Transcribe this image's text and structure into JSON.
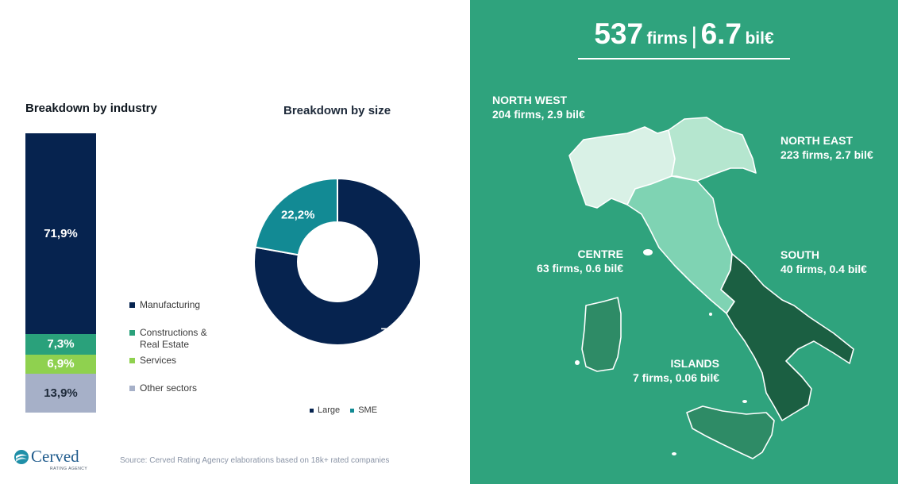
{
  "industry": {
    "title": "Breakdown by industry",
    "legend": [
      {
        "label": "Manufacturing",
        "color": "#06234f"
      },
      {
        "label": "Constructions & Real Estate",
        "color": "#2aa17b"
      },
      {
        "label": "Services",
        "color": "#8fd14f"
      },
      {
        "label": "Other sectors",
        "color": "#a6b0c8"
      }
    ]
  },
  "size": {
    "title": "Breakdown by size",
    "legend_large": "Large",
    "legend_sme": "SME",
    "color_large": "#06234f",
    "color_sme": "#128a94"
  },
  "chart_data": [
    {
      "type": "bar",
      "title": "Breakdown by industry",
      "categories": [
        "Manufacturing",
        "Constructions & Real Estate",
        "Services",
        "Other sectors"
      ],
      "values": [
        71.9,
        7.3,
        6.9,
        13.9
      ],
      "labels": [
        "71,9%",
        "7,3%",
        "6,9%",
        "13,9%"
      ],
      "unit": "%",
      "stacked": true
    },
    {
      "type": "pie",
      "title": "Breakdown by size",
      "categories": [
        "Large",
        "SME"
      ],
      "values": [
        77.8,
        22.2
      ],
      "labels": [
        "77,8%",
        "22,2%"
      ],
      "donut": true,
      "legend": "bottom"
    }
  ],
  "source": "Source: Cerved Rating Agency elaborations based on 18k+ rated companies",
  "logo": {
    "name": "Cerved",
    "sub": "RATING AGENCY"
  },
  "headline": {
    "firms": "537",
    "firms_unit": "firms",
    "separator": "|",
    "amount": "6.7",
    "amount_unit": "bil€"
  },
  "regions": {
    "north_west": {
      "name": "NORTH WEST",
      "detail": "204 firms, 2.9 bil€"
    },
    "north_east": {
      "name": "NORTH EAST",
      "detail": "223 firms, 2.7 bil€"
    },
    "centre": {
      "name": "CENTRE",
      "detail": "63 firms, 0.6 bil€"
    },
    "south": {
      "name": "SOUTH",
      "detail": "40 firms, 0.4 bil€"
    },
    "islands": {
      "name": "ISLANDS",
      "detail": "7 firms, 0.06 bil€"
    }
  },
  "map_colors": {
    "north_west": "#d9f1e6",
    "north_east": "#b5e6cf",
    "centre": "#7fd3b3",
    "south": "#1b5f42",
    "islands": "#2e8b66",
    "border": "#ffffff"
  }
}
